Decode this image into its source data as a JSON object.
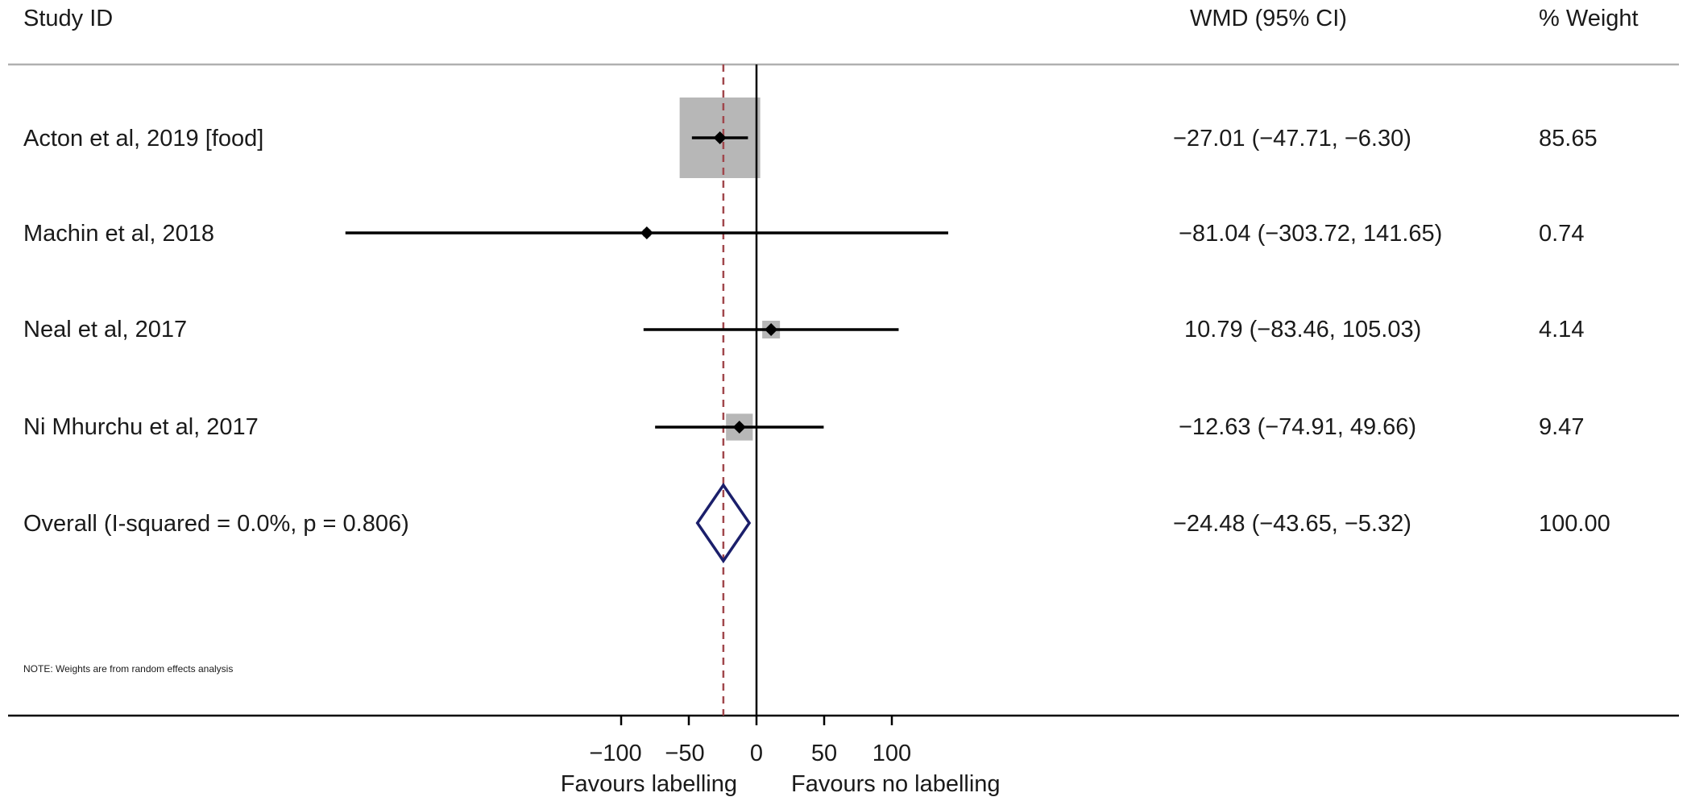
{
  "chart_data": {
    "type": "forest",
    "columns": {
      "study": "Study ID",
      "effect": "WMD (95% CI)",
      "weight": "% Weight"
    },
    "studies": [
      {
        "label": "Acton et al, 2019 [food]",
        "wmd": -27.01,
        "lower": -47.71,
        "upper": -6.3,
        "ci_text": "−27.01 (−47.71, −6.30)",
        "weight": 85.65,
        "weight_text": "85.65"
      },
      {
        "label": "Machin et al, 2018",
        "wmd": -81.04,
        "lower": -303.72,
        "upper": 141.65,
        "ci_text": "−81.04 (−303.72, 141.65)",
        "weight": 0.74,
        "weight_text": "0.74"
      },
      {
        "label": "Neal et al, 2017",
        "wmd": 10.79,
        "lower": -83.46,
        "upper": 105.03,
        "ci_text": "10.79 (−83.46, 105.03)",
        "weight": 4.14,
        "weight_text": "4.14"
      },
      {
        "label": "Ni Mhurchu et al, 2017",
        "wmd": -12.63,
        "lower": -74.91,
        "upper": 49.66,
        "ci_text": "−12.63 (−74.91, 49.66)",
        "weight": 9.47,
        "weight_text": "9.47"
      }
    ],
    "overall": {
      "label": "Overall  (I-squared = 0.0%, p = 0.806)",
      "wmd": -24.48,
      "lower": -43.65,
      "upper": -5.32,
      "ci_text": "−24.48 (−43.65, −5.32)",
      "weight_text": "100.00"
    },
    "note": "NOTE: Weights are from random effects analysis",
    "x_axis": {
      "ticks": [
        -100,
        -50,
        0,
        50,
        100
      ],
      "tick_labels": [
        "−100",
        "−50",
        "0",
        "50",
        "100"
      ],
      "display_range": [
        -303.72,
        141.65
      ]
    },
    "favours_left": "Favours labelling",
    "favours_right": "Favours no labelling",
    "reference_line": 0,
    "colors": {
      "weight_box": "#b7b7b7",
      "overall_diamond": "#1b1f6b",
      "pooled_line": "#a0474c",
      "line": "#000000"
    }
  }
}
